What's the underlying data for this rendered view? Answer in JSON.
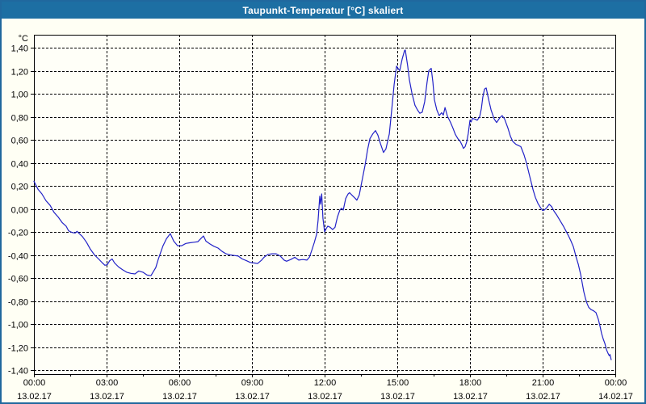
{
  "window": {
    "title": "Taupunkt-Temperatur [°C] skaliert"
  },
  "colors": {
    "titlebar_bg": "#1D6FA3",
    "window_border": "#20689E",
    "page_bg": "#FFFFF4",
    "plot_bg": "#FFFFF8",
    "grid": "#000000",
    "axis": "#000000",
    "line": "#2222C8",
    "title_text": "#FFFFFF",
    "tick_text": "#000000"
  },
  "chart_data": {
    "type": "line",
    "title": "Taupunkt-Temperatur [°C] skaliert",
    "xlabel": "",
    "ylabel": "°C",
    "xlim": [
      0,
      24
    ],
    "ylim": [
      -1.4,
      1.4
    ],
    "grid": true,
    "legend_position": "none",
    "y_ticks": [
      {
        "value": 1.4,
        "label": "1,40"
      },
      {
        "value": 1.2,
        "label": "1,20"
      },
      {
        "value": 1.0,
        "label": "1,00"
      },
      {
        "value": 0.8,
        "label": "0,80"
      },
      {
        "value": 0.6,
        "label": "0,60"
      },
      {
        "value": 0.4,
        "label": "0,40"
      },
      {
        "value": 0.2,
        "label": "0,20"
      },
      {
        "value": 0.0,
        "label": "0,00"
      },
      {
        "value": -0.2,
        "label": "-0,20"
      },
      {
        "value": -0.4,
        "label": "-0,40"
      },
      {
        "value": -0.6,
        "label": "-0,60"
      },
      {
        "value": -0.8,
        "label": "-0,80"
      },
      {
        "value": -1.0,
        "label": "-1,00"
      },
      {
        "value": -1.2,
        "label": "-1,20"
      },
      {
        "value": -1.4,
        "label": "-1,40"
      }
    ],
    "x_ticks": [
      {
        "hour": 0,
        "time": "00:00",
        "date": "13.02.17",
        "gridline": false
      },
      {
        "hour": 3,
        "time": "03:00",
        "date": "13.02.17",
        "gridline": true
      },
      {
        "hour": 6,
        "time": "06:00",
        "date": "13.02.17",
        "gridline": true
      },
      {
        "hour": 9,
        "time": "09:00",
        "date": "13.02.17",
        "gridline": true
      },
      {
        "hour": 12,
        "time": "12:00",
        "date": "13.02.17",
        "gridline": true
      },
      {
        "hour": 15,
        "time": "15:00",
        "date": "13.02.17",
        "gridline": true
      },
      {
        "hour": 18,
        "time": "18:00",
        "date": "13.02.17",
        "gridline": true
      },
      {
        "hour": 21,
        "time": "21:00",
        "date": "13.02.17",
        "gridline": true
      },
      {
        "hour": 24,
        "time": "00:00",
        "date": "14.02.17",
        "gridline": false
      }
    ],
    "x_minor_tick_hours": [
      1.5,
      4.5,
      7.5,
      10.5,
      13.5,
      16.5,
      19.5,
      22.5
    ],
    "series": [
      {
        "name": "Taupunkt-Temperatur skaliert",
        "color": "#2222C8",
        "points": [
          [
            0.0,
            0.24
          ],
          [
            0.17,
            0.17
          ],
          [
            0.33,
            0.13
          ],
          [
            0.5,
            0.07
          ],
          [
            0.67,
            0.03
          ],
          [
            0.83,
            -0.03
          ],
          [
            1.0,
            -0.07
          ],
          [
            1.17,
            -0.12
          ],
          [
            1.33,
            -0.15
          ],
          [
            1.43,
            -0.19
          ],
          [
            1.57,
            -0.205
          ],
          [
            1.7,
            -0.21
          ],
          [
            1.78,
            -0.195
          ],
          [
            1.9,
            -0.22
          ],
          [
            2.0,
            -0.24
          ],
          [
            2.17,
            -0.29
          ],
          [
            2.33,
            -0.35
          ],
          [
            2.5,
            -0.4
          ],
          [
            2.67,
            -0.435
          ],
          [
            2.83,
            -0.47
          ],
          [
            2.93,
            -0.49
          ],
          [
            3.03,
            -0.485
          ],
          [
            3.13,
            -0.45
          ],
          [
            3.23,
            -0.435
          ],
          [
            3.33,
            -0.47
          ],
          [
            3.5,
            -0.505
          ],
          [
            3.67,
            -0.53
          ],
          [
            3.83,
            -0.55
          ],
          [
            4.0,
            -0.56
          ],
          [
            4.17,
            -0.565
          ],
          [
            4.33,
            -0.54
          ],
          [
            4.5,
            -0.55
          ],
          [
            4.67,
            -0.575
          ],
          [
            4.83,
            -0.58
          ],
          [
            4.93,
            -0.545
          ],
          [
            5.03,
            -0.51
          ],
          [
            5.13,
            -0.44
          ],
          [
            5.23,
            -0.38
          ],
          [
            5.33,
            -0.32
          ],
          [
            5.47,
            -0.26
          ],
          [
            5.63,
            -0.215
          ],
          [
            5.77,
            -0.28
          ],
          [
            5.93,
            -0.32
          ],
          [
            6.1,
            -0.32
          ],
          [
            6.27,
            -0.3
          ],
          [
            6.43,
            -0.295
          ],
          [
            6.6,
            -0.29
          ],
          [
            6.77,
            -0.285
          ],
          [
            6.93,
            -0.25
          ],
          [
            7.0,
            -0.235
          ],
          [
            7.1,
            -0.28
          ],
          [
            7.27,
            -0.305
          ],
          [
            7.43,
            -0.325
          ],
          [
            7.6,
            -0.34
          ],
          [
            7.77,
            -0.37
          ],
          [
            7.93,
            -0.39
          ],
          [
            8.1,
            -0.4
          ],
          [
            8.27,
            -0.405
          ],
          [
            8.43,
            -0.41
          ],
          [
            8.6,
            -0.435
          ],
          [
            8.77,
            -0.45
          ],
          [
            8.93,
            -0.465
          ],
          [
            9.1,
            -0.47
          ],
          [
            9.23,
            -0.475
          ],
          [
            9.4,
            -0.445
          ],
          [
            9.5,
            -0.42
          ],
          [
            9.67,
            -0.395
          ],
          [
            9.83,
            -0.39
          ],
          [
            10.0,
            -0.39
          ],
          [
            10.17,
            -0.41
          ],
          [
            10.33,
            -0.445
          ],
          [
            10.43,
            -0.455
          ],
          [
            10.6,
            -0.44
          ],
          [
            10.77,
            -0.42
          ],
          [
            10.93,
            -0.445
          ],
          [
            11.1,
            -0.44
          ],
          [
            11.27,
            -0.445
          ],
          [
            11.37,
            -0.42
          ],
          [
            11.47,
            -0.36
          ],
          [
            11.57,
            -0.295
          ],
          [
            11.67,
            -0.22
          ],
          [
            11.73,
            -0.1
          ],
          [
            11.8,
            0.11
          ],
          [
            11.83,
            0.04
          ],
          [
            11.88,
            0.13
          ],
          [
            11.93,
            -0.08
          ],
          [
            12.0,
            -0.2
          ],
          [
            12.07,
            -0.17
          ],
          [
            12.13,
            -0.15
          ],
          [
            12.23,
            -0.16
          ],
          [
            12.33,
            -0.18
          ],
          [
            12.43,
            -0.16
          ],
          [
            12.53,
            -0.07
          ],
          [
            12.63,
            -0.01
          ],
          [
            12.7,
            0.005
          ],
          [
            12.77,
            -0.01
          ],
          [
            12.87,
            0.09
          ],
          [
            12.97,
            0.13
          ],
          [
            13.03,
            0.14
          ],
          [
            13.17,
            0.11
          ],
          [
            13.27,
            0.09
          ],
          [
            13.33,
            0.075
          ],
          [
            13.43,
            0.12
          ],
          [
            13.53,
            0.23
          ],
          [
            13.67,
            0.38
          ],
          [
            13.77,
            0.51
          ],
          [
            13.87,
            0.61
          ],
          [
            14.0,
            0.655
          ],
          [
            14.1,
            0.68
          ],
          [
            14.2,
            0.64
          ],
          [
            14.3,
            0.57
          ],
          [
            14.43,
            0.49
          ],
          [
            14.53,
            0.52
          ],
          [
            14.67,
            0.65
          ],
          [
            14.77,
            0.86
          ],
          [
            14.87,
            1.08
          ],
          [
            14.97,
            1.24
          ],
          [
            15.03,
            1.22
          ],
          [
            15.1,
            1.2
          ],
          [
            15.2,
            1.3
          ],
          [
            15.3,
            1.375
          ],
          [
            15.33,
            1.38
          ],
          [
            15.43,
            1.24
          ],
          [
            15.5,
            1.12
          ],
          [
            15.6,
            1.01
          ],
          [
            15.73,
            0.9
          ],
          [
            15.83,
            0.86
          ],
          [
            15.93,
            0.83
          ],
          [
            16.03,
            0.84
          ],
          [
            16.13,
            0.93
          ],
          [
            16.23,
            1.1
          ],
          [
            16.3,
            1.2
          ],
          [
            16.4,
            1.22
          ],
          [
            16.47,
            1.1
          ],
          [
            16.53,
            0.95
          ],
          [
            16.63,
            0.86
          ],
          [
            16.73,
            0.81
          ],
          [
            16.83,
            0.835
          ],
          [
            16.9,
            0.815
          ],
          [
            16.97,
            0.88
          ],
          [
            17.07,
            0.805
          ],
          [
            17.2,
            0.75
          ],
          [
            17.3,
            0.7
          ],
          [
            17.4,
            0.645
          ],
          [
            17.5,
            0.61
          ],
          [
            17.6,
            0.585
          ],
          [
            17.67,
            0.555
          ],
          [
            17.73,
            0.525
          ],
          [
            17.8,
            0.54
          ],
          [
            17.87,
            0.585
          ],
          [
            17.93,
            0.655
          ],
          [
            18.0,
            0.77
          ],
          [
            18.05,
            0.755
          ],
          [
            18.1,
            0.785
          ],
          [
            18.2,
            0.78
          ],
          [
            18.3,
            0.77
          ],
          [
            18.4,
            0.8
          ],
          [
            18.47,
            0.87
          ],
          [
            18.53,
            0.97
          ],
          [
            18.6,
            1.04
          ],
          [
            18.67,
            1.05
          ],
          [
            18.77,
            0.95
          ],
          [
            18.87,
            0.86
          ],
          [
            19.0,
            0.78
          ],
          [
            19.1,
            0.75
          ],
          [
            19.23,
            0.79
          ],
          [
            19.33,
            0.81
          ],
          [
            19.43,
            0.78
          ],
          [
            19.57,
            0.7
          ],
          [
            19.67,
            0.63
          ],
          [
            19.77,
            0.585
          ],
          [
            19.9,
            0.56
          ],
          [
            20.0,
            0.55
          ],
          [
            20.1,
            0.54
          ],
          [
            20.23,
            0.47
          ],
          [
            20.33,
            0.4
          ],
          [
            20.47,
            0.28
          ],
          [
            20.6,
            0.17
          ],
          [
            20.7,
            0.1
          ],
          [
            20.8,
            0.05
          ],
          [
            20.93,
            0.005
          ],
          [
            21.0,
            -0.015
          ],
          [
            21.07,
            -0.01
          ],
          [
            21.17,
            0.01
          ],
          [
            21.27,
            0.04
          ],
          [
            21.37,
            0.02
          ],
          [
            21.47,
            -0.02
          ],
          [
            21.57,
            -0.05
          ],
          [
            21.67,
            -0.085
          ],
          [
            21.77,
            -0.12
          ],
          [
            21.87,
            -0.155
          ],
          [
            21.97,
            -0.195
          ],
          [
            22.07,
            -0.235
          ],
          [
            22.17,
            -0.28
          ],
          [
            22.27,
            -0.33
          ],
          [
            22.37,
            -0.41
          ],
          [
            22.47,
            -0.48
          ],
          [
            22.57,
            -0.57
          ],
          [
            22.63,
            -0.64
          ],
          [
            22.7,
            -0.72
          ],
          [
            22.77,
            -0.78
          ],
          [
            22.83,
            -0.82
          ],
          [
            22.9,
            -0.855
          ],
          [
            23.0,
            -0.875
          ],
          [
            23.1,
            -0.885
          ],
          [
            23.2,
            -0.9
          ],
          [
            23.3,
            -0.96
          ],
          [
            23.37,
            -1.02
          ],
          [
            23.43,
            -1.08
          ],
          [
            23.5,
            -1.13
          ],
          [
            23.57,
            -1.17
          ],
          [
            23.63,
            -1.22
          ],
          [
            23.7,
            -1.255
          ],
          [
            23.75,
            -1.275
          ],
          [
            23.78,
            -1.265
          ],
          [
            23.83,
            -1.31
          ]
        ]
      }
    ]
  }
}
